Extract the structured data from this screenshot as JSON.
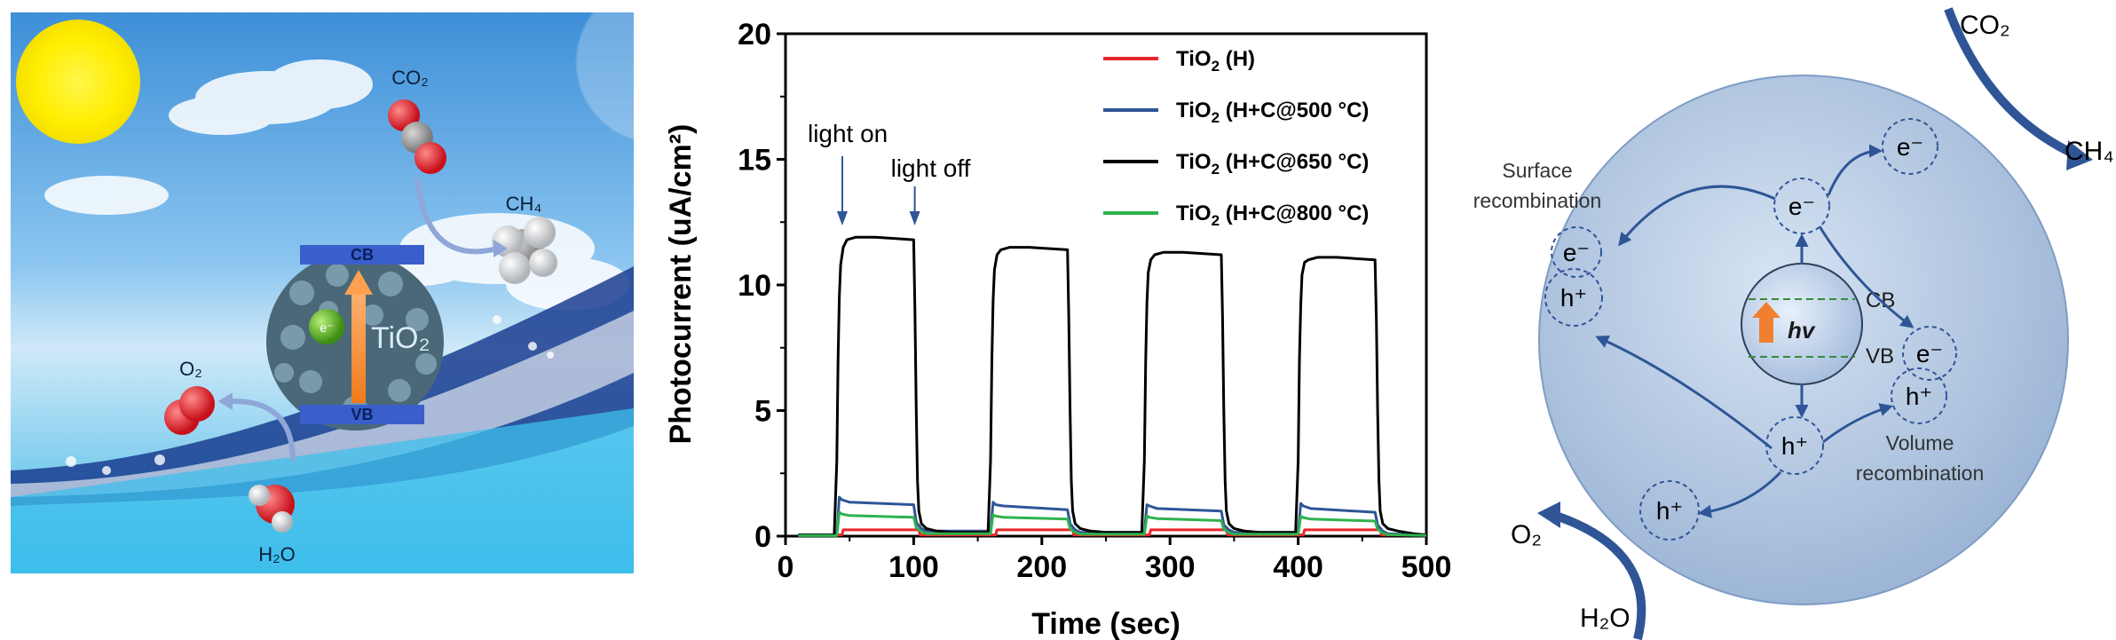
{
  "left_panel": {
    "labels": {
      "co2": "CO₂",
      "ch4": "CH₄",
      "o2": "O₂",
      "h2o": "H₂O",
      "cb": "CB",
      "vb": "VB",
      "electron": "e⁻",
      "tio2": "TiO₂"
    }
  },
  "chart_data": {
    "type": "line",
    "xlabel": "Time (sec)",
    "ylabel": "Photocurrent (uA/cm²)",
    "xlim": [
      0,
      500
    ],
    "ylim": [
      0,
      20
    ],
    "xticks": [
      0,
      100,
      200,
      300,
      400,
      500
    ],
    "yticks": [
      0,
      5,
      10,
      15,
      20
    ],
    "grid": false,
    "legend_position": "top-right",
    "annotations": [
      {
        "text": "light on",
        "x": 45
      },
      {
        "text": "light off",
        "x": 105
      }
    ],
    "series": [
      {
        "name_main": "TiO",
        "name_sub": "2",
        "name_rest": " (H)",
        "color": "#e8262a",
        "x": [
          10,
          44,
          45,
          104,
          105,
          164,
          165,
          224,
          225,
          284,
          285,
          344,
          345,
          404,
          405,
          464,
          465,
          500
        ],
        "y": [
          0.05,
          0.05,
          0.25,
          0.25,
          0.05,
          0.05,
          0.25,
          0.25,
          0.05,
          0.05,
          0.25,
          0.25,
          0.05,
          0.05,
          0.25,
          0.25,
          0.05,
          0.05
        ]
      },
      {
        "name_main": "TiO",
        "name_sub": "2",
        "name_rest": " (H+C@500 °C)",
        "color": "#2f5597",
        "x": [
          10,
          40,
          42,
          44,
          50,
          100,
          102,
          106,
          110,
          160,
          162,
          164,
          170,
          220,
          222,
          226,
          230,
          280,
          282,
          284,
          290,
          340,
          342,
          346,
          350,
          400,
          402,
          404,
          410,
          460,
          462,
          466,
          470,
          500
        ],
        "y": [
          0.05,
          0.05,
          1.55,
          1.45,
          1.35,
          1.25,
          0.55,
          0.3,
          0.2,
          0.2,
          1.35,
          1.25,
          1.2,
          1.05,
          0.5,
          0.25,
          0.15,
          0.15,
          1.25,
          1.2,
          1.1,
          1.0,
          0.45,
          0.25,
          0.15,
          0.15,
          1.3,
          1.2,
          1.1,
          0.95,
          0.45,
          0.2,
          0.1,
          0.05
        ]
      },
      {
        "name_main": "TiO",
        "name_sub": "2",
        "name_rest": " (H+C@650 °C)",
        "color": "#000000",
        "x": [
          10,
          38,
          40,
          41,
          42,
          43,
          45,
          48,
          55,
          70,
          100,
          101,
          102,
          103,
          104,
          106,
          110,
          118,
          130,
          158,
          160,
          161,
          162,
          163,
          165,
          168,
          175,
          190,
          220,
          221,
          222,
          223,
          224,
          226,
          230,
          238,
          250,
          278,
          280,
          281,
          282,
          283,
          285,
          288,
          295,
          310,
          340,
          341,
          342,
          343,
          344,
          346,
          350,
          358,
          370,
          398,
          400,
          401,
          402,
          403,
          405,
          408,
          415,
          430,
          460,
          461,
          462,
          463,
          464,
          466,
          470,
          478,
          490,
          500
        ],
        "y": [
          0.05,
          0.05,
          3,
          7,
          9.5,
          10.8,
          11.5,
          11.8,
          11.9,
          11.9,
          11.8,
          9,
          5,
          2.2,
          1.0,
          0.5,
          0.3,
          0.2,
          0.15,
          0.15,
          3,
          7,
          9.4,
          10.6,
          11.2,
          11.4,
          11.5,
          11.5,
          11.4,
          8.8,
          5,
          2.2,
          1.0,
          0.5,
          0.3,
          0.2,
          0.15,
          0.15,
          3,
          7,
          9.3,
          10.5,
          11.0,
          11.2,
          11.3,
          11.3,
          11.2,
          8.7,
          5,
          2.2,
          1.0,
          0.5,
          0.3,
          0.2,
          0.15,
          0.15,
          3,
          7,
          9.2,
          10.4,
          10.9,
          11.0,
          11.1,
          11.1,
          11.0,
          8.6,
          5,
          2.2,
          1.0,
          0.5,
          0.3,
          0.2,
          0.1,
          0.05
        ]
      },
      {
        "name_main": "TiO",
        "name_sub": "2",
        "name_rest": " (H+C@800 °C)",
        "color": "#2fb24d",
        "x": [
          10,
          40,
          42,
          44,
          50,
          100,
          102,
          106,
          110,
          160,
          162,
          164,
          170,
          220,
          222,
          226,
          230,
          280,
          282,
          284,
          290,
          340,
          342,
          346,
          350,
          400,
          402,
          404,
          410,
          460,
          462,
          466,
          470,
          500
        ],
        "y": [
          0.02,
          0.02,
          0.95,
          0.88,
          0.82,
          0.75,
          0.35,
          0.18,
          0.1,
          0.1,
          0.85,
          0.8,
          0.75,
          0.68,
          0.3,
          0.15,
          0.08,
          0.08,
          0.8,
          0.75,
          0.7,
          0.62,
          0.28,
          0.14,
          0.08,
          0.08,
          0.8,
          0.74,
          0.68,
          0.6,
          0.28,
          0.12,
          0.06,
          0.03
        ]
      }
    ]
  },
  "right_panel": {
    "labels": {
      "co2": "CO₂",
      "ch4": "CH₄",
      "o2": "O₂",
      "h2o": "H₂O",
      "surface_recombination_1": "Surface",
      "surface_recombination_2": "recombination",
      "volume_recombination_1": "Volume",
      "volume_recombination_2": "recombination",
      "cb": "CB",
      "vb": "VB",
      "hv": "hv",
      "electron": "e⁻",
      "hole": "h⁺"
    }
  }
}
